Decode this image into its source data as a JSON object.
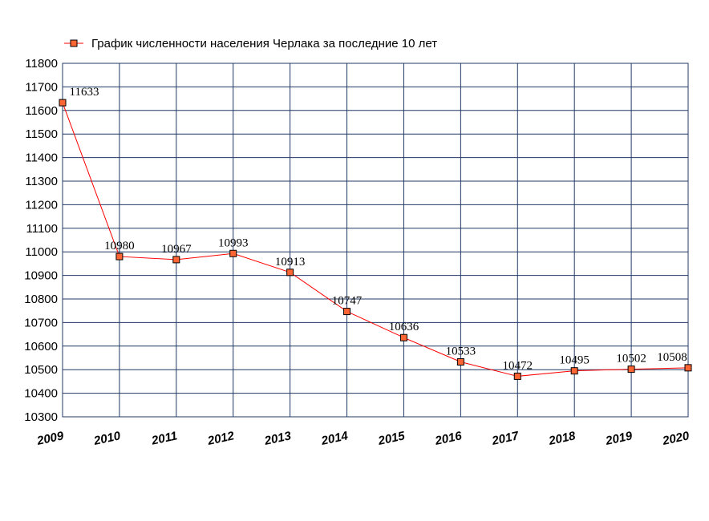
{
  "chart_data": {
    "type": "line",
    "title": "",
    "xlabel": "",
    "ylabel": "",
    "x": [
      "2009",
      "2010",
      "2011",
      "2012",
      "2013",
      "2014",
      "2015",
      "2016",
      "2017",
      "2018",
      "2019",
      "2020"
    ],
    "series": [
      {
        "name": "График численности населения Черлака за последние 10 лет",
        "values": [
          11633,
          10980,
          10967,
          10993,
          10913,
          10747,
          10636,
          10533,
          10472,
          10495,
          10502,
          10508
        ],
        "color": "#ff0000",
        "marker_fill": "#ff6633",
        "marker_stroke": "#000000"
      }
    ],
    "data_labels": [
      "11633",
      "10980",
      "10967",
      "10993",
      "10913",
      "10747",
      "10636",
      "10533",
      "10472",
      "10495",
      "10502",
      "10508"
    ],
    "y_ticks": [
      "10300",
      "10400",
      "10500",
      "10600",
      "10700",
      "10800",
      "10900",
      "11000",
      "11100",
      "11200",
      "11300",
      "11400",
      "11500",
      "11600",
      "11700",
      "11800"
    ],
    "ylim": [
      10300,
      11800
    ],
    "grid": true,
    "grid_color": "#1f3864",
    "legend_position": "top"
  }
}
